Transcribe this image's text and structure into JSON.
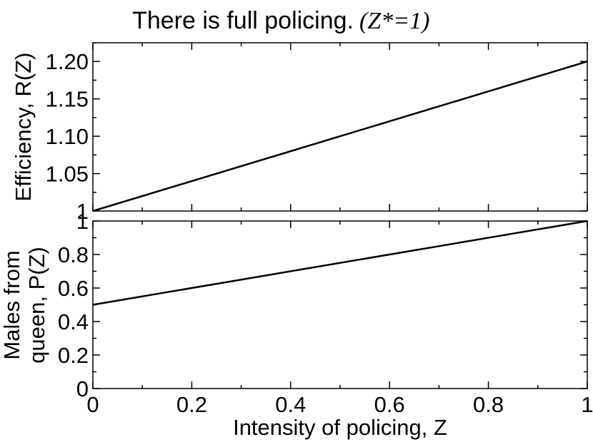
{
  "chart_data": [
    {
      "type": "line",
      "title": "There is full policing.",
      "title_math": "(Z*=1)",
      "xlabel": "",
      "ylabel": "Efficiency, R(Z)",
      "xlim": [
        0,
        1
      ],
      "ylim": [
        1.0,
        1.225
      ],
      "y_ticks": [
        1.0,
        1.05,
        1.1,
        1.15,
        1.2
      ],
      "y_tick_labels": [
        "1",
        "1.05",
        "1.10",
        "1.15",
        "1.20"
      ],
      "grid": false,
      "series": [
        {
          "x": [
            0,
            1
          ],
          "y": [
            1.0,
            1.2
          ]
        }
      ]
    },
    {
      "type": "line",
      "xlabel": "Intensity of policing, Z",
      "ylabel_line1": "Males from",
      "ylabel_line2": "queen, P(Z)",
      "xlim": [
        0,
        1
      ],
      "ylim": [
        0,
        1
      ],
      "x_ticks": [
        0,
        0.2,
        0.4,
        0.6,
        0.8,
        1
      ],
      "x_tick_labels": [
        "0",
        "0.2",
        "0.4",
        "0.6",
        "0.8",
        "1"
      ],
      "y_ticks": [
        0,
        0.2,
        0.4,
        0.6,
        0.8,
        1
      ],
      "y_tick_labels": [
        "0",
        "0.2",
        "0.4",
        "0.6",
        "0.8",
        "1"
      ],
      "grid": false,
      "series": [
        {
          "x": [
            0,
            1
          ],
          "y": [
            0.5,
            1.0
          ]
        }
      ]
    }
  ]
}
